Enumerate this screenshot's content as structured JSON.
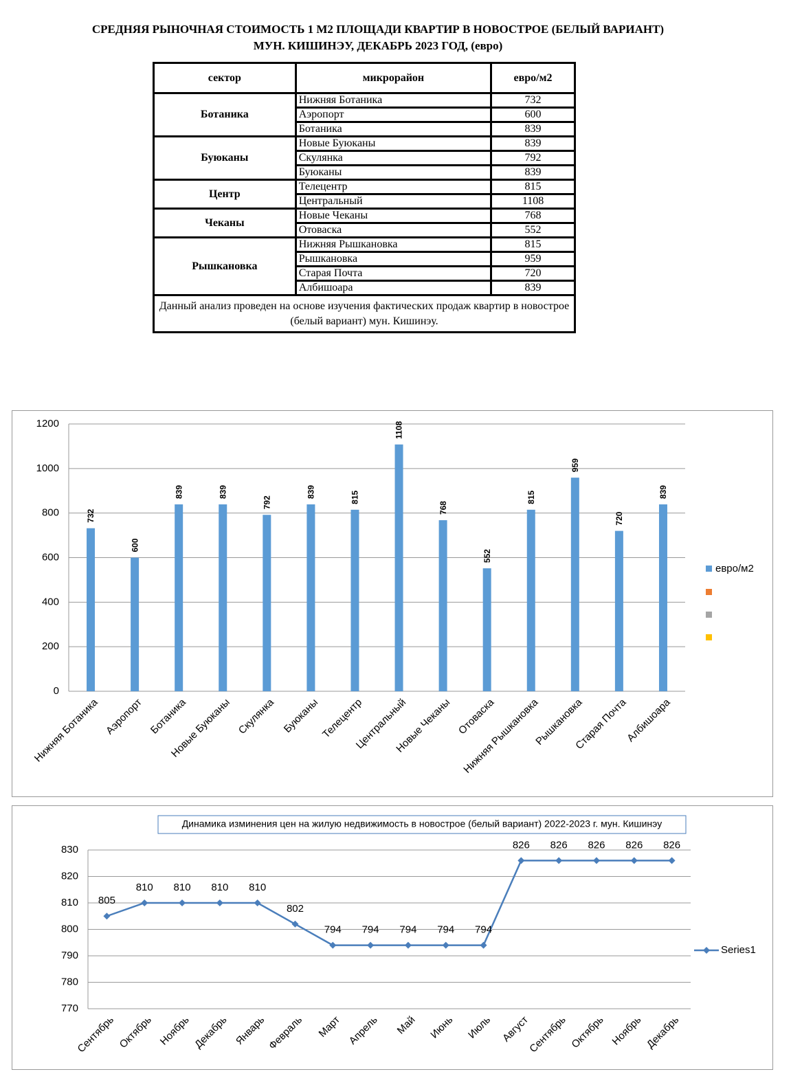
{
  "header": {
    "title": "СРЕДНЯЯ РЫНОЧНАЯ СТОИМОСТЬ 1 М2 ПЛОЩАДИ КВАРТИР В НОВОСТРОЕ (БЕЛЫЙ ВАРИАНТ)",
    "subtitle": "МУН. КИШИНЭУ, ДЕКАБРЬ 2023 ГОД, (евро)"
  },
  "table": {
    "columns": [
      "сектор",
      "микрорайон",
      "евро/м2"
    ],
    "groups": [
      {
        "sector": "Ботаника",
        "rows": [
          [
            "Нижняя Ботаника",
            732
          ],
          [
            "Аэропорт",
            600
          ],
          [
            "Ботаника",
            839
          ]
        ]
      },
      {
        "sector": "Буюканы",
        "rows": [
          [
            "Новые Буюканы",
            839
          ],
          [
            "Скулянка",
            792
          ],
          [
            "Буюканы",
            839
          ]
        ]
      },
      {
        "sector": "Центр",
        "rows": [
          [
            "Телецентр",
            815
          ],
          [
            "Центральный",
            1108
          ]
        ]
      },
      {
        "sector": "Чеканы",
        "rows": [
          [
            "Новые Чеканы",
            768
          ],
          [
            "Отоваска",
            552
          ]
        ]
      },
      {
        "sector": "Рышкановка",
        "rows": [
          [
            "Нижняя Рышкановка",
            815
          ],
          [
            "Рышкановка",
            959
          ],
          [
            "Старая Почта",
            720
          ],
          [
            "Албишоара",
            839
          ]
        ]
      }
    ],
    "note": "Данный анализ проведен на основе изучения фактических продаж квартир в новострое (белый вариант)  мун. Кишинэу."
  },
  "chart_data": [
    {
      "type": "bar",
      "categories": [
        "Нижняя Ботаника",
        "Аэропорт",
        "Ботаника",
        "Новые Буюканы",
        "Скулянка",
        "Буюканы",
        "Телецентр",
        "Центральный",
        "Новые Чеканы",
        "Отоваска",
        "Нижняя Рышкановка",
        "Рышкановка",
        "Старая Почта",
        "Албишоара"
      ],
      "series": [
        {
          "name": "евро/м2",
          "color": "#5b9bd5",
          "values": [
            732,
            600,
            839,
            839,
            792,
            839,
            815,
            1108,
            768,
            552,
            815,
            959,
            720,
            839
          ]
        }
      ],
      "ylim": [
        0,
        1200
      ],
      "yticks": [
        0,
        200,
        400,
        600,
        800,
        1000,
        1200
      ],
      "grid": true,
      "legend": "right",
      "data_labels": true
    },
    {
      "type": "line",
      "title": "Динамика изминения цен на жилую недвижимость в новострое (белый вариант) 2022-2023 г. мун. Кишинэу",
      "categories": [
        "Сентябрь",
        "Октябрь",
        "Ноябрь",
        "Декабрь",
        "Январь",
        "Февраль",
        "Март",
        "Апрель",
        "Май",
        "Июнь",
        "Июль",
        "Август",
        "Сентябрь",
        "Октябрь",
        "Ноябрь",
        "Декабрь"
      ],
      "series": [
        {
          "name": "Series1",
          "color": "#4a7ebb",
          "values": [
            805,
            810,
            810,
            810,
            810,
            802,
            794,
            794,
            794,
            794,
            794,
            826,
            826,
            826,
            826,
            826
          ]
        }
      ],
      "ylim": [
        770,
        830
      ],
      "yticks": [
        770,
        780,
        790,
        800,
        810,
        820,
        830
      ],
      "grid": true,
      "legend": "right",
      "data_labels": true
    }
  ]
}
